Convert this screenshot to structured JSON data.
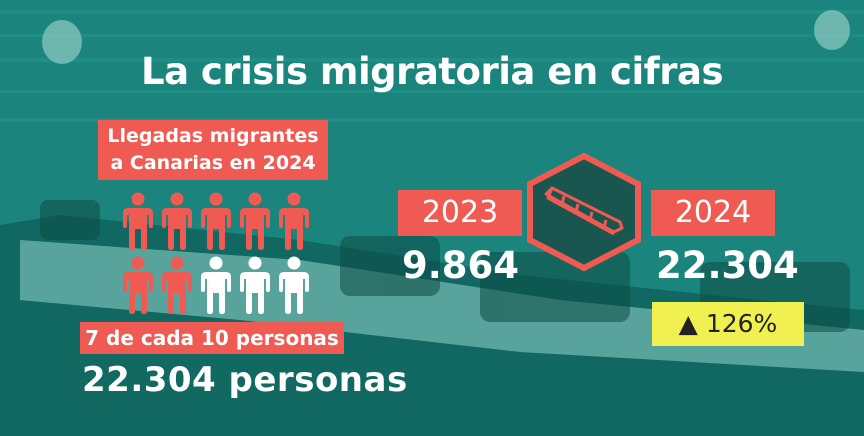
{
  "title": "La crisis migratoria en cifras",
  "infographic": {
    "llegadas_label": [
      "Llegadas migrantes",
      "a Canarias en 2024"
    ],
    "proportion_label": "7 de cada 10 personas",
    "total_label": "22.304 personas",
    "people_icons": {
      "highlighted": 7,
      "total": 10,
      "highlight_color": "#ef5b52",
      "other_color": "#ffffff"
    },
    "comparison": {
      "year_a": "2023",
      "value_a": "9.864",
      "year_b": "2024",
      "value_b": "22.304",
      "change": "▲ 126%",
      "boat_icon": "boat-icon"
    }
  },
  "colors": {
    "accent": "#ef5b52",
    "highlight": "#f0f050",
    "background": "#1c8a82",
    "text": "#ffffff"
  }
}
